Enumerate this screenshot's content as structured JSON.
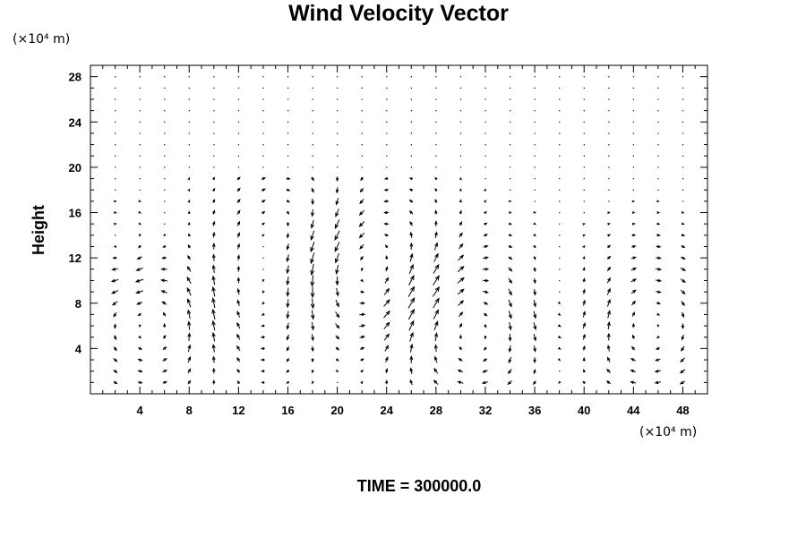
{
  "chart_data": {
    "type": "vector_field",
    "title": "Wind Velocity Vector",
    "ylabel": "Height",
    "x_unit": "(×10⁴ m)",
    "y_unit": "(×10⁴ m)",
    "footer": "TIME = 300000.0",
    "xlim": [
      0,
      50
    ],
    "ylim": [
      0,
      29
    ],
    "x_ticks": [
      4,
      8,
      12,
      16,
      20,
      24,
      28,
      32,
      36,
      40,
      44,
      48
    ],
    "y_ticks": [
      4,
      8,
      12,
      16,
      20,
      24,
      28
    ],
    "grid": false,
    "arrow_color": "#000000",
    "field": {
      "x_start": 2,
      "x_step": 2,
      "x_count": 25,
      "y_start": 1,
      "y_step": 1,
      "y_count": 28,
      "description_value_units": "x,y in ×10⁴ m"
    }
  }
}
